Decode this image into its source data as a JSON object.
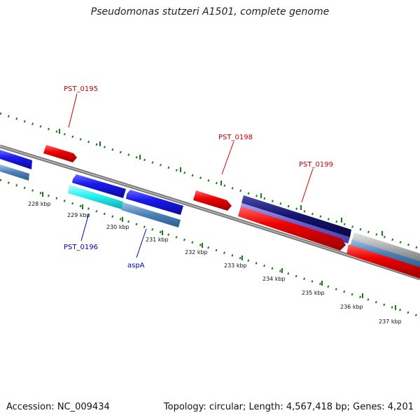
{
  "title": "Pseudomonas stutzeri A1501, complete genome",
  "footer": {
    "accession": "Accession: NC_009434",
    "summary": "Topology: circular; Length: 4,567,418 bp; Genes: 4,201"
  },
  "colors": {
    "backbone": "#888888",
    "forward_cds": "#ee0000",
    "reverse_cds": "#1a1aee",
    "highlight_cds": "#22eeee",
    "navy_cds": "#14146e",
    "steel": "#4a7fb5",
    "grey": "#b0b0b0",
    "tick": "#1a7a1a",
    "forward_label": "#cc0000",
    "reverse_label": "#0000bb"
  },
  "kbp_labels": [
    "228 kbp",
    "229 kbp",
    "230 kbp",
    "231 kbp",
    "232 kbp",
    "233 kbp",
    "234 kbp",
    "235 kbp",
    "236 kbp",
    "237 kbp"
  ],
  "gene_labels": {
    "pst_0195": "PST_0195",
    "pst_0196": "PST_0196",
    "pst_0198": "PST_0198",
    "pst_0199": "PST_0199",
    "aspa": "aspA"
  }
}
